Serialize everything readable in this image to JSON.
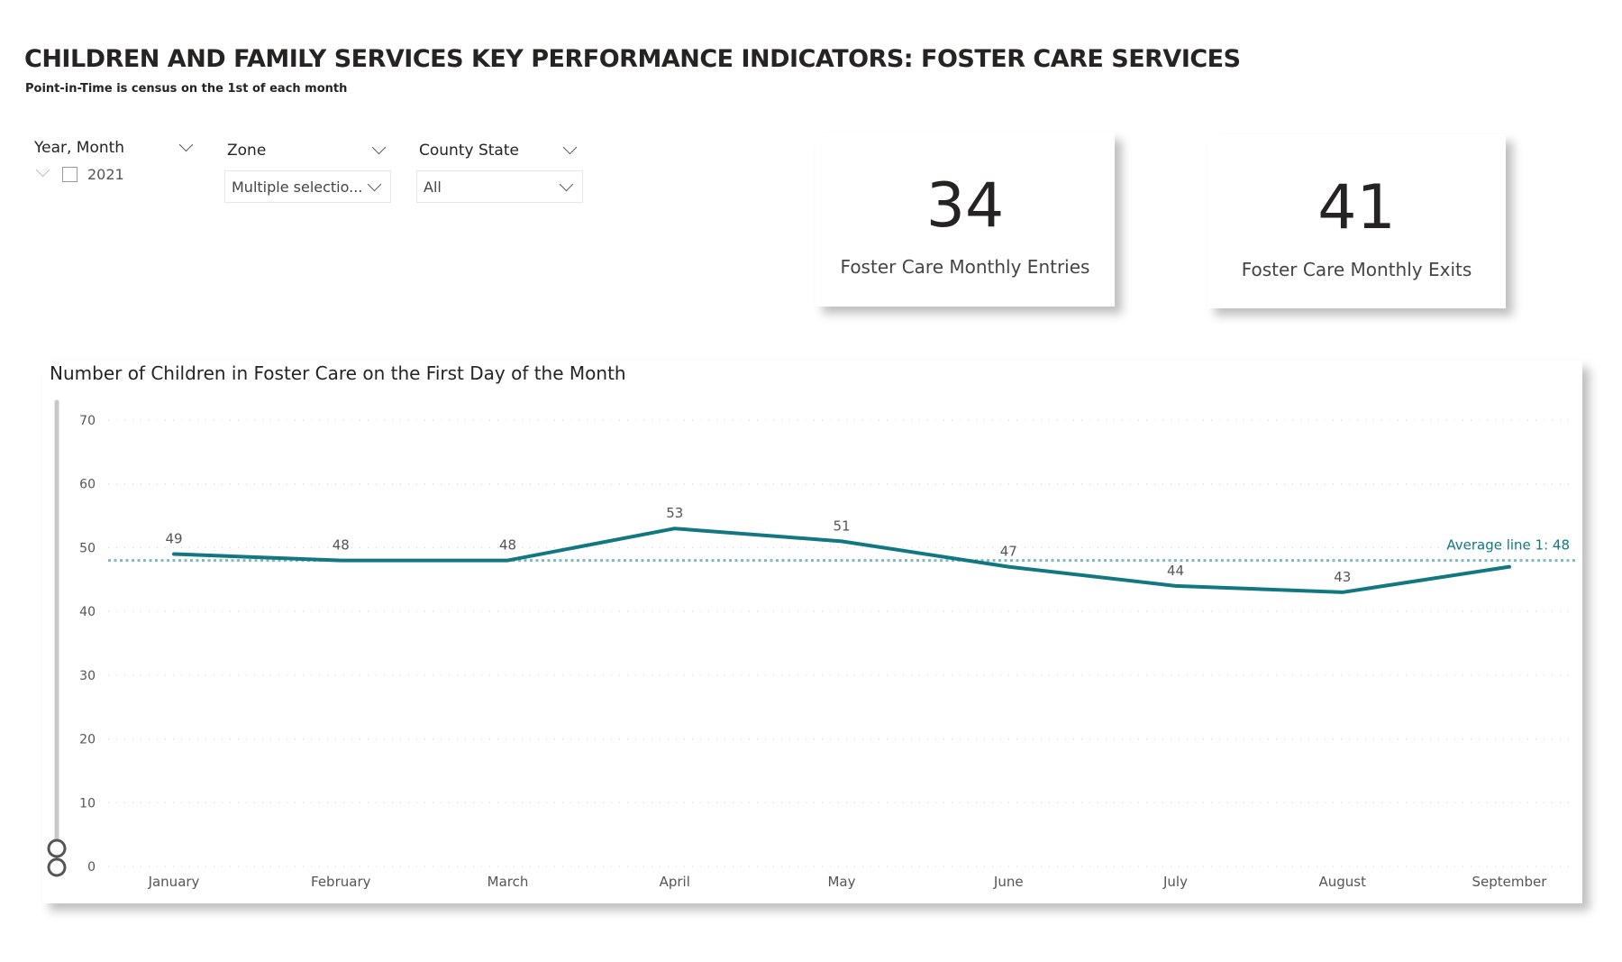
{
  "header": {
    "title": "CHILDREN AND FAMILY SERVICES KEY PERFORMANCE INDICATORS: FOSTER CARE SERVICES",
    "subtitle": "Point-in-Time is census on the 1st of each month"
  },
  "filters": {
    "year_month": {
      "label": "Year, Month",
      "item": "2021"
    },
    "zone": {
      "label": "Zone",
      "value": "Multiple selectio..."
    },
    "county_state": {
      "label": "County State",
      "value": "All"
    }
  },
  "kpis": [
    {
      "value": "34",
      "label": "Foster Care Monthly Entries"
    },
    {
      "value": "41",
      "label": "Foster Care Monthly Exits"
    }
  ],
  "chart_data": {
    "type": "line",
    "title": "Number of Children in Foster Care on the First Day of the Month",
    "categories": [
      "January",
      "February",
      "March",
      "April",
      "May",
      "June",
      "July",
      "August",
      "September"
    ],
    "values": [
      49,
      48,
      48,
      53,
      51,
      47,
      44,
      43,
      47
    ],
    "data_labels": [
      "49",
      "48",
      "48",
      "53",
      "51",
      "47",
      "44",
      "43",
      ""
    ],
    "ylim": [
      0,
      70
    ],
    "yticks": [
      0,
      10,
      20,
      30,
      40,
      50,
      60,
      70
    ],
    "grid": true,
    "average_line": {
      "label": "Average line 1: 48",
      "value": 48
    },
    "colors": {
      "line": "#117780",
      "average": "#7fb9bd"
    }
  }
}
